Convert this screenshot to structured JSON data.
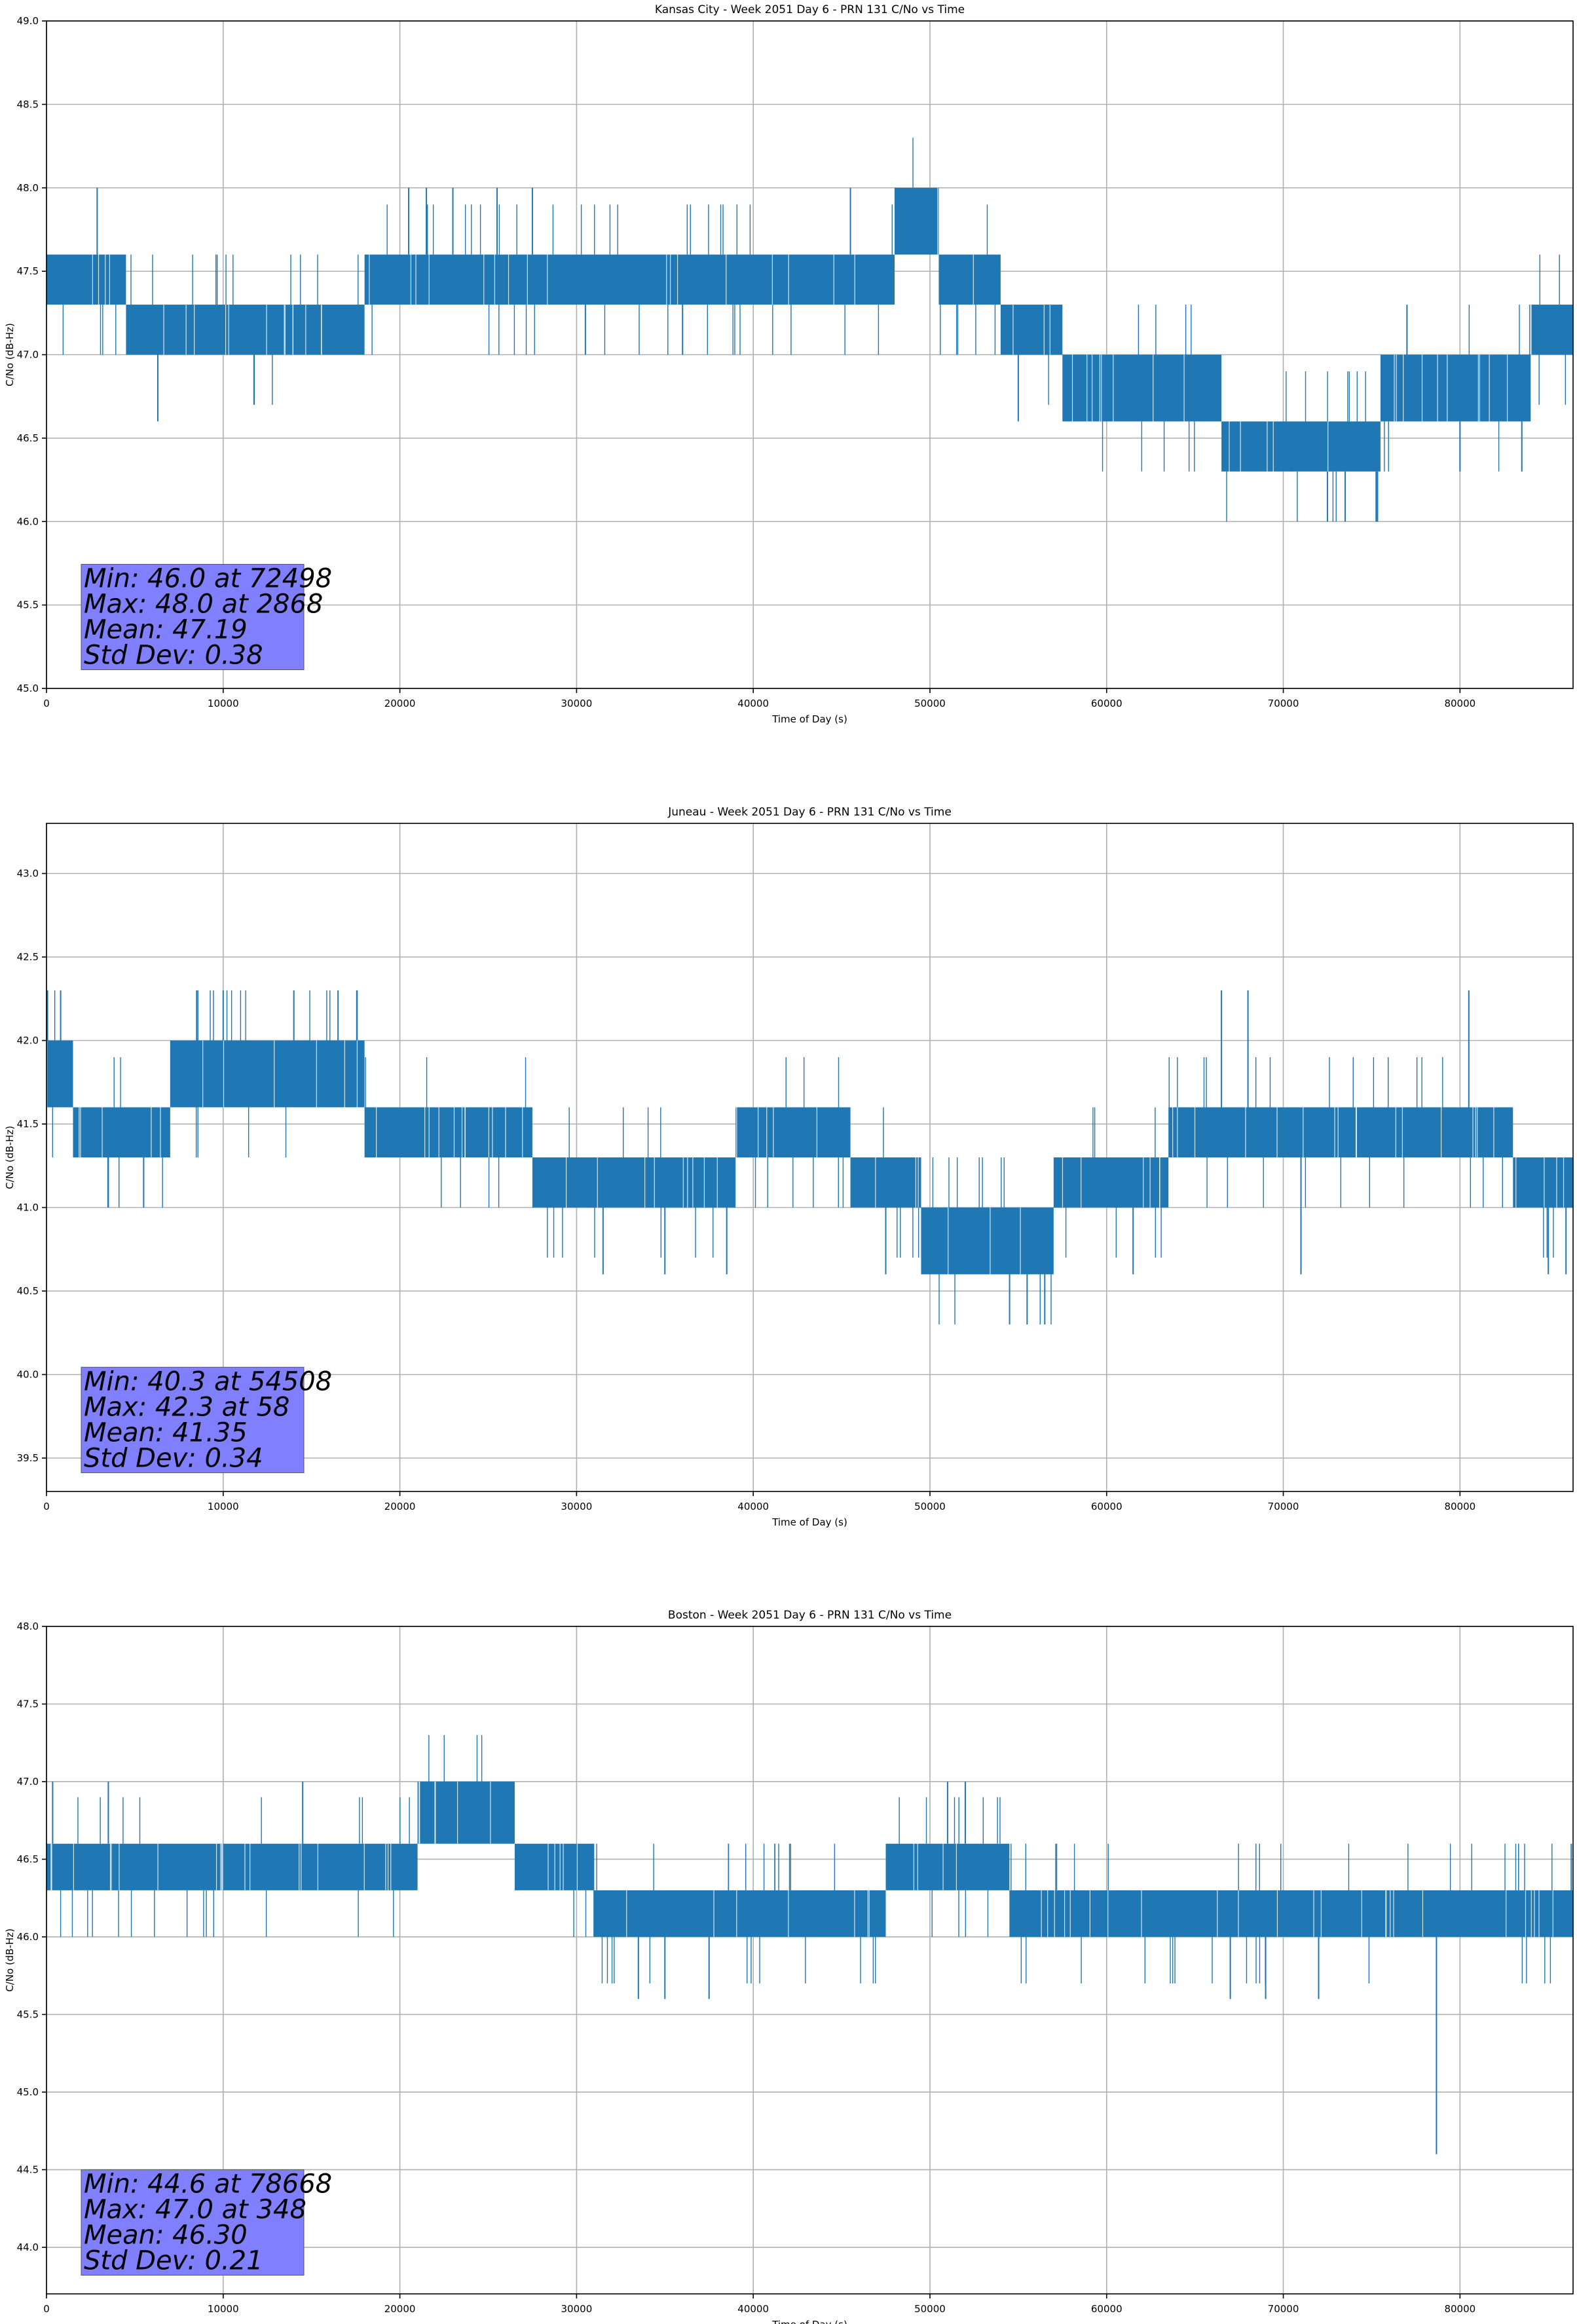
{
  "chart_data": [
    {
      "type": "line",
      "title": "Kansas City - Week 2051 Day 6 - PRN 131 C/No vs Time",
      "xlabel": "Time of Day (s)",
      "ylabel": "C/No (dB-Hz)",
      "xlim": [
        0,
        86400
      ],
      "ylim": [
        45.0,
        49.0
      ],
      "xticks": [
        "0",
        "10000",
        "20000",
        "30000",
        "40000",
        "50000",
        "60000",
        "70000",
        "80000"
      ],
      "yticks": [
        "45.0",
        "45.5",
        "46.0",
        "46.5",
        "47.0",
        "47.5",
        "48.0",
        "48.5",
        "49.0"
      ],
      "grid": true,
      "series": [
        {
          "color": "#1f77b4",
          "segments": [
            {
              "x_start": 0,
              "x_end": 4500,
              "low": 47.3,
              "high": 47.6
            },
            {
              "x_start": 4500,
              "x_end": 18000,
              "low": 47.0,
              "high": 47.3
            },
            {
              "x_start": 18000,
              "x_end": 48000,
              "low": 47.3,
              "high": 47.6
            },
            {
              "x_start": 48000,
              "x_end": 50500,
              "low": 47.6,
              "high": 48.0
            },
            {
              "x_start": 50500,
              "x_end": 54000,
              "low": 47.3,
              "high": 47.6
            },
            {
              "x_start": 54000,
              "x_end": 57500,
              "low": 47.0,
              "high": 47.3
            },
            {
              "x_start": 57500,
              "x_end": 66500,
              "low": 46.6,
              "high": 47.0
            },
            {
              "x_start": 66500,
              "x_end": 75500,
              "low": 46.3,
              "high": 46.6
            },
            {
              "x_start": 75500,
              "x_end": 84000,
              "low": 46.6,
              "high": 47.0
            },
            {
              "x_start": 84000,
              "x_end": 86400,
              "low": 47.0,
              "high": 47.3
            }
          ],
          "spikes": [
            {
              "x": 2868,
              "y": 48.0
            },
            {
              "x": 6300,
              "y": 46.6
            },
            {
              "x": 20500,
              "y": 48.0
            },
            {
              "x": 21500,
              "y": 48.0
            },
            {
              "x": 23000,
              "y": 48.0
            },
            {
              "x": 25500,
              "y": 48.0
            },
            {
              "x": 27500,
              "y": 48.0
            },
            {
              "x": 45500,
              "y": 48.0
            },
            {
              "x": 30500,
              "y": 47.0
            },
            {
              "x": 36000,
              "y": 47.0
            },
            {
              "x": 55000,
              "y": 46.6
            },
            {
              "x": 58500,
              "y": 46.6
            },
            {
              "x": 67000,
              "y": 46.3
            },
            {
              "x": 72498,
              "y": 46.0
            },
            {
              "x": 73500,
              "y": 46.0
            },
            {
              "x": 77000,
              "y": 47.3
            },
            {
              "x": 80000,
              "y": 46.3
            },
            {
              "x": 83500,
              "y": 46.3
            },
            {
              "x": 70500,
              "y": 46.6
            }
          ]
        }
      ],
      "stats": [
        "Min: 46.0 at 72498",
        "Max: 48.0 at 2868",
        "Mean: 47.19",
        "Std Dev: 0.38"
      ]
    },
    {
      "type": "line",
      "title": "Juneau - Week 2051 Day 6 - PRN 131 C/No vs Time",
      "xlabel": "Time of Day (s)",
      "ylabel": "C/No (dB-Hz)",
      "xlim": [
        0,
        86400
      ],
      "ylim": [
        39.3,
        43.3
      ],
      "xticks": [
        "0",
        "10000",
        "20000",
        "30000",
        "40000",
        "50000",
        "60000",
        "70000",
        "80000"
      ],
      "yticks": [
        "39.5",
        "40.0",
        "40.5",
        "41.0",
        "41.5",
        "42.0",
        "42.5",
        "43.0"
      ],
      "grid": true,
      "series": [
        {
          "color": "#1f77b4",
          "segments": [
            {
              "x_start": 0,
              "x_end": 1500,
              "low": 41.6,
              "high": 42.0
            },
            {
              "x_start": 1500,
              "x_end": 7000,
              "low": 41.3,
              "high": 41.6
            },
            {
              "x_start": 7000,
              "x_end": 18000,
              "low": 41.6,
              "high": 42.0
            },
            {
              "x_start": 18000,
              "x_end": 27500,
              "low": 41.3,
              "high": 41.6
            },
            {
              "x_start": 27500,
              "x_end": 39000,
              "low": 41.0,
              "high": 41.3
            },
            {
              "x_start": 39000,
              "x_end": 45500,
              "low": 41.3,
              "high": 41.6
            },
            {
              "x_start": 45500,
              "x_end": 49500,
              "low": 41.0,
              "high": 41.3
            },
            {
              "x_start": 49500,
              "x_end": 57000,
              "low": 40.6,
              "high": 41.0
            },
            {
              "x_start": 57000,
              "x_end": 63500,
              "low": 41.0,
              "high": 41.3
            },
            {
              "x_start": 63500,
              "x_end": 83000,
              "low": 41.3,
              "high": 41.6
            },
            {
              "x_start": 83000,
              "x_end": 86400,
              "low": 41.0,
              "high": 41.3
            }
          ],
          "spikes": [
            {
              "x": 58,
              "y": 42.3
            },
            {
              "x": 800,
              "y": 42.3
            },
            {
              "x": 8500,
              "y": 42.3
            },
            {
              "x": 10000,
              "y": 42.3
            },
            {
              "x": 14000,
              "y": 42.3
            },
            {
              "x": 16500,
              "y": 42.3
            },
            {
              "x": 3500,
              "y": 41.0
            },
            {
              "x": 5500,
              "y": 41.0
            },
            {
              "x": 31500,
              "y": 40.6
            },
            {
              "x": 35000,
              "y": 40.6
            },
            {
              "x": 38500,
              "y": 40.6
            },
            {
              "x": 47500,
              "y": 40.6
            },
            {
              "x": 54508,
              "y": 40.3
            },
            {
              "x": 55500,
              "y": 40.3
            },
            {
              "x": 56500,
              "y": 40.3
            },
            {
              "x": 61500,
              "y": 40.6
            },
            {
              "x": 66500,
              "y": 42.3
            },
            {
              "x": 68000,
              "y": 42.3
            },
            {
              "x": 80500,
              "y": 42.3
            },
            {
              "x": 71000,
              "y": 40.6
            },
            {
              "x": 85000,
              "y": 40.6
            },
            {
              "x": 86000,
              "y": 40.6
            }
          ]
        }
      ],
      "stats": [
        "Min: 40.3 at 54508",
        "Max: 42.3 at 58",
        "Mean: 41.35",
        "Std Dev: 0.34"
      ]
    },
    {
      "type": "line",
      "title": "Boston - Week 2051 Day 6 - PRN 131 C/No vs Time",
      "xlabel": "Time of Day (s)",
      "ylabel": "C/No (dB-Hz)",
      "xlim": [
        0,
        86400
      ],
      "ylim": [
        43.7,
        48.0
      ],
      "xticks": [
        "0",
        "10000",
        "20000",
        "30000",
        "40000",
        "50000",
        "60000",
        "70000",
        "80000"
      ],
      "yticks": [
        "44.0",
        "44.5",
        "45.0",
        "45.5",
        "46.0",
        "46.5",
        "47.0",
        "47.5",
        "48.0"
      ],
      "grid": true,
      "series": [
        {
          "color": "#1f77b4",
          "segments": [
            {
              "x_start": 0,
              "x_end": 21000,
              "low": 46.3,
              "high": 46.6
            },
            {
              "x_start": 21000,
              "x_end": 26500,
              "low": 46.6,
              "high": 47.0
            },
            {
              "x_start": 26500,
              "x_end": 31000,
              "low": 46.3,
              "high": 46.6
            },
            {
              "x_start": 31000,
              "x_end": 47500,
              "low": 46.0,
              "high": 46.3
            },
            {
              "x_start": 47500,
              "x_end": 54500,
              "low": 46.3,
              "high": 46.6
            },
            {
              "x_start": 54500,
              "x_end": 86400,
              "low": 46.0,
              "high": 46.3
            }
          ],
          "spikes": [
            {
              "x": 348,
              "y": 47.0
            },
            {
              "x": 3500,
              "y": 47.0
            },
            {
              "x": 14500,
              "y": 47.0
            },
            {
              "x": 51000,
              "y": 47.0
            },
            {
              "x": 52000,
              "y": 47.0
            },
            {
              "x": 33500,
              "y": 45.6
            },
            {
              "x": 35000,
              "y": 45.6
            },
            {
              "x": 37500,
              "y": 45.6
            },
            {
              "x": 67000,
              "y": 45.6
            },
            {
              "x": 69000,
              "y": 45.6
            },
            {
              "x": 72000,
              "y": 45.6
            },
            {
              "x": 78668,
              "y": 44.6
            },
            {
              "x": 86300,
              "y": 46.6
            }
          ]
        }
      ],
      "stats": [
        "Min: 44.6 at 78668",
        "Max: 47.0 at 348",
        "Mean: 46.30",
        "Std Dev: 0.21"
      ]
    }
  ]
}
